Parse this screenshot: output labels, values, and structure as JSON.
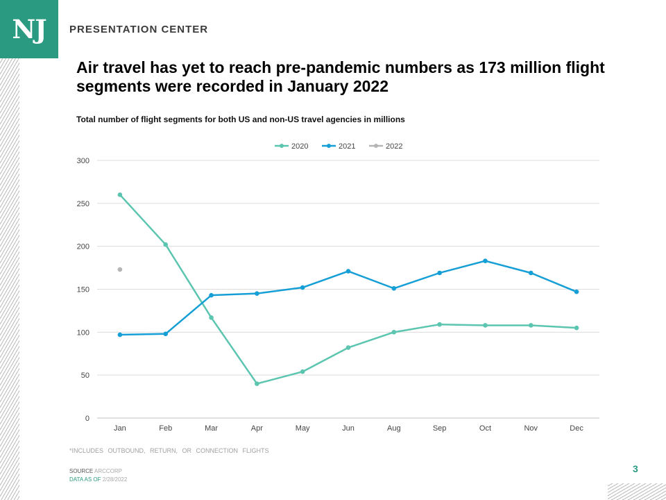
{
  "header": {
    "logo": "NJ",
    "brand": "PRESENTATION CENTER"
  },
  "title": "Air travel has yet to reach pre-pandemic numbers as 173 million flight segments were recorded in January 2022",
  "subtitle": "Total number of flight segments for both US and non-US travel agencies in millions",
  "chart_data": {
    "type": "line",
    "categories": [
      "Jan",
      "Feb",
      "Mar",
      "Apr",
      "May",
      "Jun",
      "Aug",
      "Sep",
      "Oct",
      "Nov",
      "Dec"
    ],
    "series": [
      {
        "name": "2020",
        "color": "#5bc5b0",
        "values": [
          260,
          202,
          117,
          40,
          54,
          82,
          100,
          109,
          108,
          108,
          105
        ]
      },
      {
        "name": "2021",
        "color": "#159fd6",
        "values": [
          97,
          98,
          143,
          145,
          152,
          171,
          151,
          169,
          183,
          169,
          147
        ]
      },
      {
        "name": "2022",
        "color": "#b5b5b5",
        "values": [
          173,
          null,
          null,
          null,
          null,
          null,
          null,
          null,
          null,
          null,
          null
        ]
      }
    ],
    "yticks": [
      0,
      50,
      100,
      150,
      200,
      250,
      300
    ],
    "ylim": [
      0,
      300
    ],
    "legend_position": "top-center",
    "grid": true
  },
  "footnote": "*INCLUDES OUTBOUND, RETURN, OR CONNECTION FLIGHTS",
  "source": {
    "label": "SOURCE",
    "value": "ARCCORP",
    "asof_label": "DATA AS OF",
    "asof_value": "2/28/2022"
  },
  "page_number": "3"
}
